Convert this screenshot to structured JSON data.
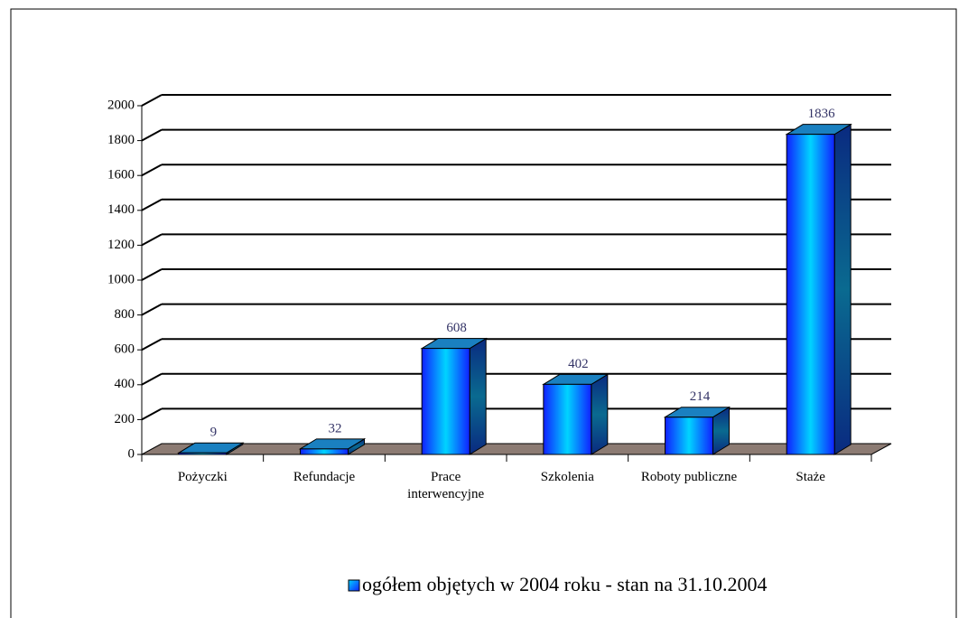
{
  "chart_data": {
    "type": "bar3d",
    "categories": [
      "Pożyczki",
      "Refundacje",
      "Prace interwencyjne",
      "Szkolenia",
      "Roboty publiczne",
      "Staże"
    ],
    "series": [
      {
        "name": "ogółem objętych w 2004 roku - stan na 31.10.2004",
        "color": "#00c8ff",
        "values": [
          9,
          32,
          608,
          402,
          214,
          1836
        ]
      }
    ],
    "ylim": [
      0,
      2000
    ],
    "yticks": [
      0,
      200,
      400,
      600,
      800,
      1000,
      1200,
      1400,
      1600,
      1800,
      2000
    ],
    "grid": true
  }
}
